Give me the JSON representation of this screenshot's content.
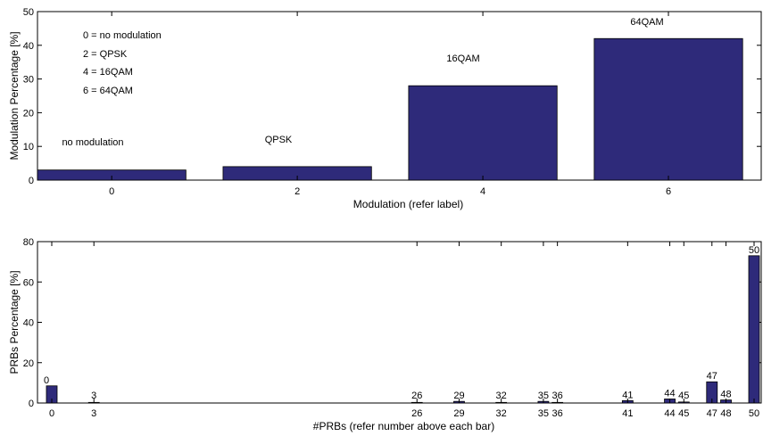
{
  "colors": {
    "bar": "#2e2a7a",
    "axis": "#000000",
    "background": "#ffffff"
  },
  "chart_data": [
    {
      "type": "bar",
      "categories": [
        "0",
        "2",
        "4",
        "6"
      ],
      "values": [
        3,
        4,
        28,
        42
      ],
      "bar_labels": [
        "no modulation",
        "QPSK",
        "16QAM",
        "64QAM"
      ],
      "ylabel": "Modulation Percentage [%]",
      "xlabel": "Modulation (refer label)",
      "ylim": [
        0,
        50
      ],
      "yticks": [
        0,
        10,
        20,
        30,
        40,
        50
      ],
      "legend_text": [
        "0 = no modulation",
        "2 = QPSK",
        "4 = 16QAM",
        "6 = 64QAM"
      ],
      "grid": false
    },
    {
      "type": "bar",
      "categories": [
        "0",
        "3",
        "26",
        "29",
        "32",
        "35",
        "36",
        "41",
        "44",
        "45",
        "47",
        "48",
        "50"
      ],
      "values": [
        8.5,
        0.3,
        0.3,
        0.8,
        0.3,
        0.8,
        0.3,
        1.2,
        2.0,
        0.5,
        10.5,
        1.5,
        73
      ],
      "bar_labels": [
        "0",
        "3",
        "26",
        "29",
        "32",
        "35",
        "36",
        "41",
        "44",
        "45",
        "47",
        "48",
        "50"
      ],
      "ylabel": "PRBs Percentage [%]",
      "xlabel": "#PRBs (refer number above each bar)",
      "ylim": [
        0,
        80
      ],
      "yticks": [
        0,
        20,
        40,
        60,
        80
      ],
      "grid": false
    }
  ]
}
